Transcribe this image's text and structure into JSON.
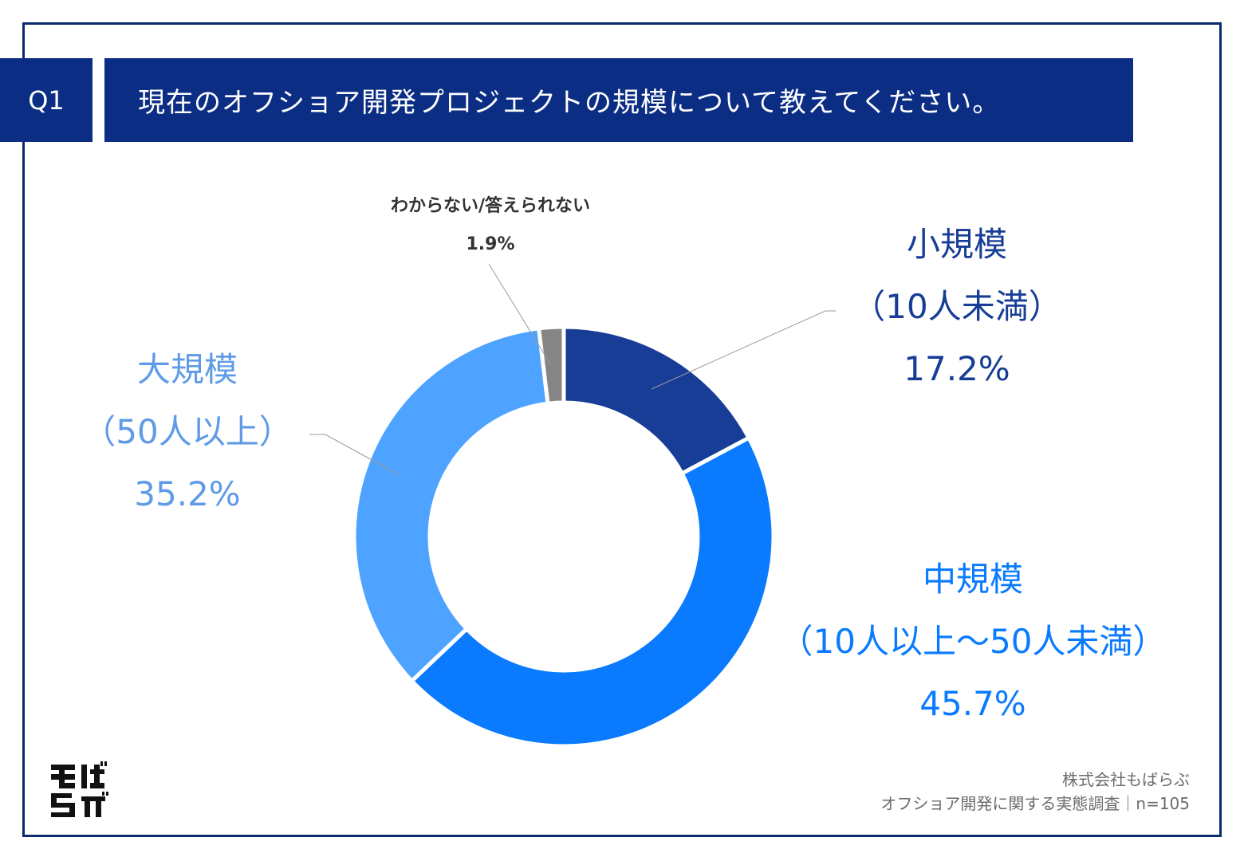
{
  "header": {
    "question_number": "Q1",
    "title": "現在のオフショア開発プロジェクトの規模について教えてください。"
  },
  "chart_data": {
    "type": "pie",
    "style": "donut",
    "title": "現在のオフショア開発プロジェクトの規模について教えてください。",
    "start_angle_deg": 0,
    "slices": [
      {
        "name": "小規模",
        "sub": "（10人未満）",
        "value": 17.2,
        "label": "17.2%",
        "color": "#173d96"
      },
      {
        "name": "中規模",
        "sub": "（10人以上〜50人未満）",
        "value": 45.7,
        "label": "45.7%",
        "color": "#0a7bff"
      },
      {
        "name": "大規模",
        "sub": "（50人以上）",
        "value": 35.2,
        "label": "35.2%",
        "color": "#4da3ff"
      },
      {
        "name": "わからない/答えられない",
        "sub": "",
        "value": 1.9,
        "label": "1.9%",
        "color": "#858585"
      }
    ]
  },
  "labels": {
    "small": {
      "name": "小規模",
      "sub": "（10人未満）",
      "pct": "17.2%",
      "color": "#173d96"
    },
    "medium": {
      "name": "中規模",
      "sub": "（10人以上〜50人未満）",
      "pct": "45.7%",
      "color": "#0a7bff"
    },
    "large": {
      "name": "大規模",
      "sub": "（50人以上）",
      "pct": "35.2%",
      "color": "#5f9be6"
    },
    "unknown": {
      "name": "わからない/答えられない",
      "pct": "1.9%"
    }
  },
  "logo": {
    "icon": "mobarabu-logo-icon",
    "text": "もばらぶ"
  },
  "source": {
    "company": "株式会社もばらぶ",
    "survey": "オフショア開発に関する実態調査｜n=105"
  }
}
